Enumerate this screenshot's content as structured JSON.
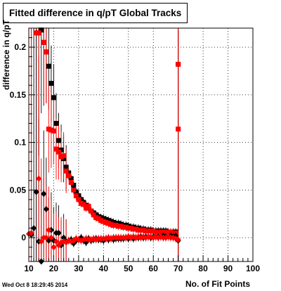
{
  "chart_data": {
    "type": "scatter",
    "title": "Fitted difference in q/pT  Global Tracks",
    "xlabel": "No. of Fit Points",
    "ylabel": "difference in q/pT",
    "xlim": [
      10,
      100
    ],
    "ylim": [
      -0.025,
      0.22
    ],
    "xticks": [
      10,
      20,
      30,
      40,
      50,
      60,
      70,
      80,
      90,
      100
    ],
    "yticks": [
      0,
      0.05,
      0.1,
      0.15,
      0.2
    ],
    "ytick_labels": [
      "0",
      "0.05",
      "0.1",
      "0.15",
      "0.2"
    ],
    "grid": true,
    "timestamp": "Wed Oct  8 18:29:45 2014",
    "series": [
      {
        "marker": "square",
        "color": "#000000",
        "points": [
          [
            14,
            0.215
          ],
          [
            15,
            0.218
          ],
          [
            16,
            0.205
          ],
          [
            17,
            0.195
          ],
          [
            18,
            0.18
          ],
          [
            19,
            0.162
          ],
          [
            20,
            0.147
          ],
          [
            21,
            0.12
          ],
          [
            22,
            0.102
          ],
          [
            23,
            0.092
          ],
          [
            24,
            0.083
          ],
          [
            25,
            0.074
          ],
          [
            26,
            0.068
          ],
          [
            27,
            0.062
          ],
          [
            28,
            0.055
          ],
          [
            29,
            0.048
          ],
          [
            30,
            0.044
          ],
          [
            31,
            0.04
          ],
          [
            32,
            0.037
          ],
          [
            33,
            0.034
          ],
          [
            34,
            0.031
          ],
          [
            35,
            0.028
          ],
          [
            36,
            0.026
          ],
          [
            37,
            0.024
          ],
          [
            38,
            0.022
          ],
          [
            39,
            0.021
          ],
          [
            40,
            0.02
          ],
          [
            41,
            0.019
          ],
          [
            42,
            0.018
          ],
          [
            43,
            0.017
          ],
          [
            44,
            0.016
          ],
          [
            45,
            0.015
          ],
          [
            46,
            0.015
          ],
          [
            47,
            0.014
          ],
          [
            48,
            0.013
          ],
          [
            49,
            0.013
          ],
          [
            50,
            0.012
          ],
          [
            51,
            0.011
          ],
          [
            52,
            0.011
          ],
          [
            53,
            0.01
          ],
          [
            54,
            0.01
          ],
          [
            55,
            0.009
          ],
          [
            56,
            0.009
          ],
          [
            57,
            0.008
          ],
          [
            58,
            0.008
          ],
          [
            59,
            0.008
          ],
          [
            60,
            0.007
          ],
          [
            61,
            0.007
          ],
          [
            62,
            0.007
          ],
          [
            63,
            0.007
          ],
          [
            64,
            0.007
          ],
          [
            65,
            0.007
          ],
          [
            66,
            0.006
          ],
          [
            67,
            0.006
          ],
          [
            68,
            0.006
          ],
          [
            69,
            0.006
          ],
          [
            70,
            0.182
          ]
        ]
      },
      {
        "marker": "square",
        "color": "#ff0000",
        "points": [
          [
            13,
            0.215
          ],
          [
            14,
            0.215
          ],
          [
            16,
            0.205
          ],
          [
            17,
            0.195
          ],
          [
            18,
            0.114
          ],
          [
            19,
            0.113
          ],
          [
            20,
            0.112
          ],
          [
            21,
            0.093
          ],
          [
            22,
            0.09
          ],
          [
            23,
            0.085
          ],
          [
            24,
            0.086
          ],
          [
            25,
            0.07
          ],
          [
            26,
            0.065
          ],
          [
            27,
            0.058
          ],
          [
            28,
            0.05
          ],
          [
            29,
            0.044
          ],
          [
            30,
            0.04
          ],
          [
            31,
            0.036
          ],
          [
            32,
            0.035
          ],
          [
            33,
            0.031
          ],
          [
            34,
            0.033
          ],
          [
            35,
            0.028
          ],
          [
            36,
            0.024
          ],
          [
            37,
            0.021
          ],
          [
            38,
            0.02
          ],
          [
            39,
            0.018
          ],
          [
            40,
            0.017
          ],
          [
            41,
            0.016
          ],
          [
            42,
            0.015
          ],
          [
            43,
            0.014
          ],
          [
            44,
            0.013
          ],
          [
            45,
            0.013
          ],
          [
            46,
            0.012
          ],
          [
            47,
            0.012
          ],
          [
            48,
            0.011
          ],
          [
            49,
            0.011
          ],
          [
            50,
            0.01
          ],
          [
            51,
            0.01
          ],
          [
            52,
            0.009
          ],
          [
            53,
            0.009
          ],
          [
            54,
            0.008
          ],
          [
            55,
            0.008
          ],
          [
            56,
            0.008
          ],
          [
            57,
            0.007
          ],
          [
            58,
            0.007
          ],
          [
            59,
            0.007
          ],
          [
            60,
            0.007
          ],
          [
            61,
            0.006
          ],
          [
            62,
            0.006
          ],
          [
            63,
            0.006
          ],
          [
            64,
            0.006
          ],
          [
            65,
            0.006
          ],
          [
            66,
            0.006
          ],
          [
            67,
            0.006
          ],
          [
            68,
            0.005
          ],
          [
            69,
            0.005
          ],
          [
            70,
            0.114
          ],
          [
            70,
            0.182
          ]
        ]
      },
      {
        "marker": "diamond",
        "color": "#000000",
        "points": [
          [
            11,
            0.003
          ],
          [
            12,
            0.01
          ],
          [
            13,
            0.048
          ],
          [
            14,
            -0.004
          ],
          [
            15,
            -0.025
          ],
          [
            16,
            0.046
          ],
          [
            17,
            0.03
          ],
          [
            18,
            -0.003
          ],
          [
            19,
            0.008
          ],
          [
            20,
            -0.003
          ],
          [
            21,
            0.005
          ],
          [
            22,
            0.005
          ],
          [
            23,
            -0.008
          ],
          [
            24,
            0.0
          ],
          [
            25,
            -0.004
          ],
          [
            26,
            -0.003
          ],
          [
            27,
            -0.002
          ],
          [
            28,
            -0.006
          ],
          [
            29,
            -0.003
          ],
          [
            30,
            -0.002
          ],
          [
            31,
            0.0
          ],
          [
            32,
            -0.003
          ],
          [
            33,
            -0.005
          ],
          [
            34,
            -0.001
          ],
          [
            35,
            -0.003
          ],
          [
            36,
            -0.002
          ],
          [
            37,
            -0.001
          ],
          [
            38,
            -0.002
          ],
          [
            39,
            -0.002
          ],
          [
            40,
            -0.003
          ],
          [
            41,
            -0.001
          ],
          [
            42,
            -0.002
          ],
          [
            43,
            -0.001
          ],
          [
            44,
            -0.002
          ],
          [
            45,
            -0.001
          ],
          [
            46,
            -0.001
          ],
          [
            47,
            -0.001
          ],
          [
            48,
            -0.001
          ],
          [
            49,
            0.0
          ],
          [
            50,
            -0.001
          ],
          [
            51,
            0.0
          ],
          [
            52,
            -0.001
          ],
          [
            53,
            0.0
          ],
          [
            54,
            0.0
          ],
          [
            55,
            0.001
          ],
          [
            56,
            0.0
          ],
          [
            57,
            0.001
          ],
          [
            58,
            0.001
          ],
          [
            59,
            0.0
          ],
          [
            60,
            0.001
          ],
          [
            61,
            0.001
          ],
          [
            62,
            0.001
          ],
          [
            63,
            0.001
          ],
          [
            64,
            0.002
          ],
          [
            65,
            0.001
          ],
          [
            66,
            0.001
          ],
          [
            67,
            0.002
          ],
          [
            68,
            0.001
          ],
          [
            69,
            0.002
          ],
          [
            70,
            -0.003
          ]
        ]
      },
      {
        "marker": "diamond",
        "color": "#ff0000",
        "points": [
          [
            10,
            0.004
          ],
          [
            11,
            0.005
          ],
          [
            14,
            0.062
          ],
          [
            15,
            -0.004
          ],
          [
            16,
            0.0
          ],
          [
            17,
            0.0
          ],
          [
            18,
            0.008
          ],
          [
            19,
            0.0
          ],
          [
            20,
            -0.01
          ],
          [
            21,
            -0.004
          ],
          [
            22,
            -0.008
          ],
          [
            23,
            -0.005
          ],
          [
            24,
            -0.004
          ],
          [
            25,
            -0.005
          ],
          [
            26,
            -0.003
          ],
          [
            27,
            -0.004
          ],
          [
            28,
            -0.003
          ],
          [
            29,
            -0.001
          ],
          [
            30,
            -0.002
          ],
          [
            31,
            -0.003
          ],
          [
            32,
            -0.002
          ],
          [
            33,
            -0.001
          ],
          [
            34,
            -0.002
          ],
          [
            35,
            -0.002
          ],
          [
            36,
            -0.001
          ],
          [
            37,
            -0.002
          ],
          [
            38,
            -0.001
          ],
          [
            39,
            -0.001
          ],
          [
            40,
            -0.001
          ],
          [
            41,
            -0.001
          ],
          [
            42,
            0.0
          ],
          [
            43,
            -0.001
          ],
          [
            44,
            0.0
          ],
          [
            45,
            0.0
          ],
          [
            46,
            0.0
          ],
          [
            47,
            0.0
          ],
          [
            48,
            0.0
          ],
          [
            49,
            0.0
          ],
          [
            50,
            0.001
          ],
          [
            51,
            0.0
          ],
          [
            52,
            0.001
          ],
          [
            53,
            0.0
          ],
          [
            54,
            0.001
          ],
          [
            55,
            0.0
          ],
          [
            56,
            0.001
          ],
          [
            57,
            0.0
          ],
          [
            58,
            0.001
          ],
          [
            59,
            0.001
          ],
          [
            60,
            0.0
          ],
          [
            61,
            0.001
          ],
          [
            62,
            0.0
          ],
          [
            63,
            0.001
          ],
          [
            64,
            0.0
          ],
          [
            65,
            0.0
          ],
          [
            66,
            0.001
          ],
          [
            67,
            0.0
          ],
          [
            68,
            0.0
          ],
          [
            69,
            -0.001
          ],
          [
            70,
            -0.002
          ]
        ]
      }
    ]
  }
}
